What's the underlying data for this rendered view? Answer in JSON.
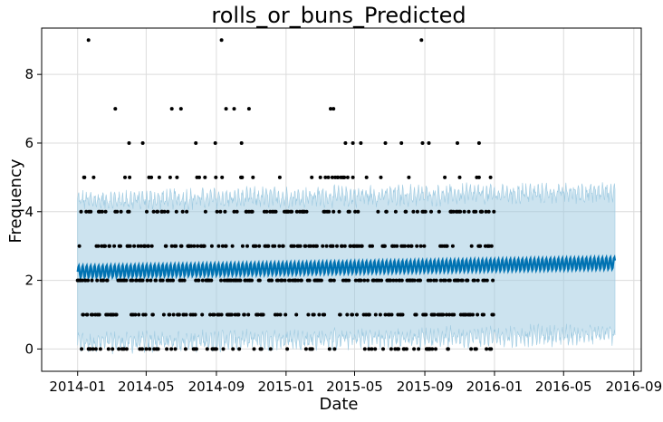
{
  "chart_data": {
    "type": "scatter",
    "title": "rolls_or_buns_Predicted",
    "xlabel": "Date",
    "ylabel": "Frequency",
    "xlim": [
      "2013-10-30",
      "2016-09-14"
    ],
    "ylim": [
      -0.65,
      9.35
    ],
    "grid": true,
    "x_ticks": [
      "2014-01",
      "2014-05",
      "2014-09",
      "2015-01",
      "2015-05",
      "2015-09",
      "2016-01",
      "2016-05",
      "2016-09"
    ],
    "y_ticks": [
      0,
      2,
      4,
      6,
      8
    ],
    "forecast": {
      "date_range": [
        "2014-01-01",
        "2016-07-30"
      ],
      "yhat_range": [
        2.25,
        2.5
      ],
      "weekly_amplitude": 0.35,
      "interval_width": 4.15,
      "color": "#0072B2",
      "interval_color": "#9ecae1"
    },
    "observed": {
      "date_range": [
        "2014-01-01",
        "2015-12-31"
      ],
      "color": "#000000",
      "outliers": [
        {
          "x": "2014-01-20",
          "y": 9
        },
        {
          "x": "2014-09-10",
          "y": 9
        },
        {
          "x": "2015-08-26",
          "y": 9
        },
        {
          "x": "2014-03-08",
          "y": 7
        },
        {
          "x": "2014-06-15",
          "y": 7
        },
        {
          "x": "2014-07-01",
          "y": 7
        },
        {
          "x": "2014-09-18",
          "y": 7
        },
        {
          "x": "2014-10-02",
          "y": 7
        },
        {
          "x": "2014-10-28",
          "y": 7
        },
        {
          "x": "2015-03-20",
          "y": 7
        },
        {
          "x": "2015-03-25",
          "y": 7
        },
        {
          "x": "2014-04-01",
          "y": 6
        },
        {
          "x": "2014-04-25",
          "y": 6
        },
        {
          "x": "2014-07-27",
          "y": 6
        },
        {
          "x": "2014-08-30",
          "y": 6
        },
        {
          "x": "2014-10-15",
          "y": 6
        },
        {
          "x": "2015-04-15",
          "y": 6
        },
        {
          "x": "2015-04-28",
          "y": 6
        },
        {
          "x": "2015-05-12",
          "y": 6
        },
        {
          "x": "2015-06-24",
          "y": 6
        },
        {
          "x": "2015-07-22",
          "y": 6
        },
        {
          "x": "2015-08-28",
          "y": 6
        },
        {
          "x": "2015-09-08",
          "y": 6
        },
        {
          "x": "2015-10-28",
          "y": 6
        },
        {
          "x": "2015-12-05",
          "y": 6
        }
      ]
    }
  }
}
